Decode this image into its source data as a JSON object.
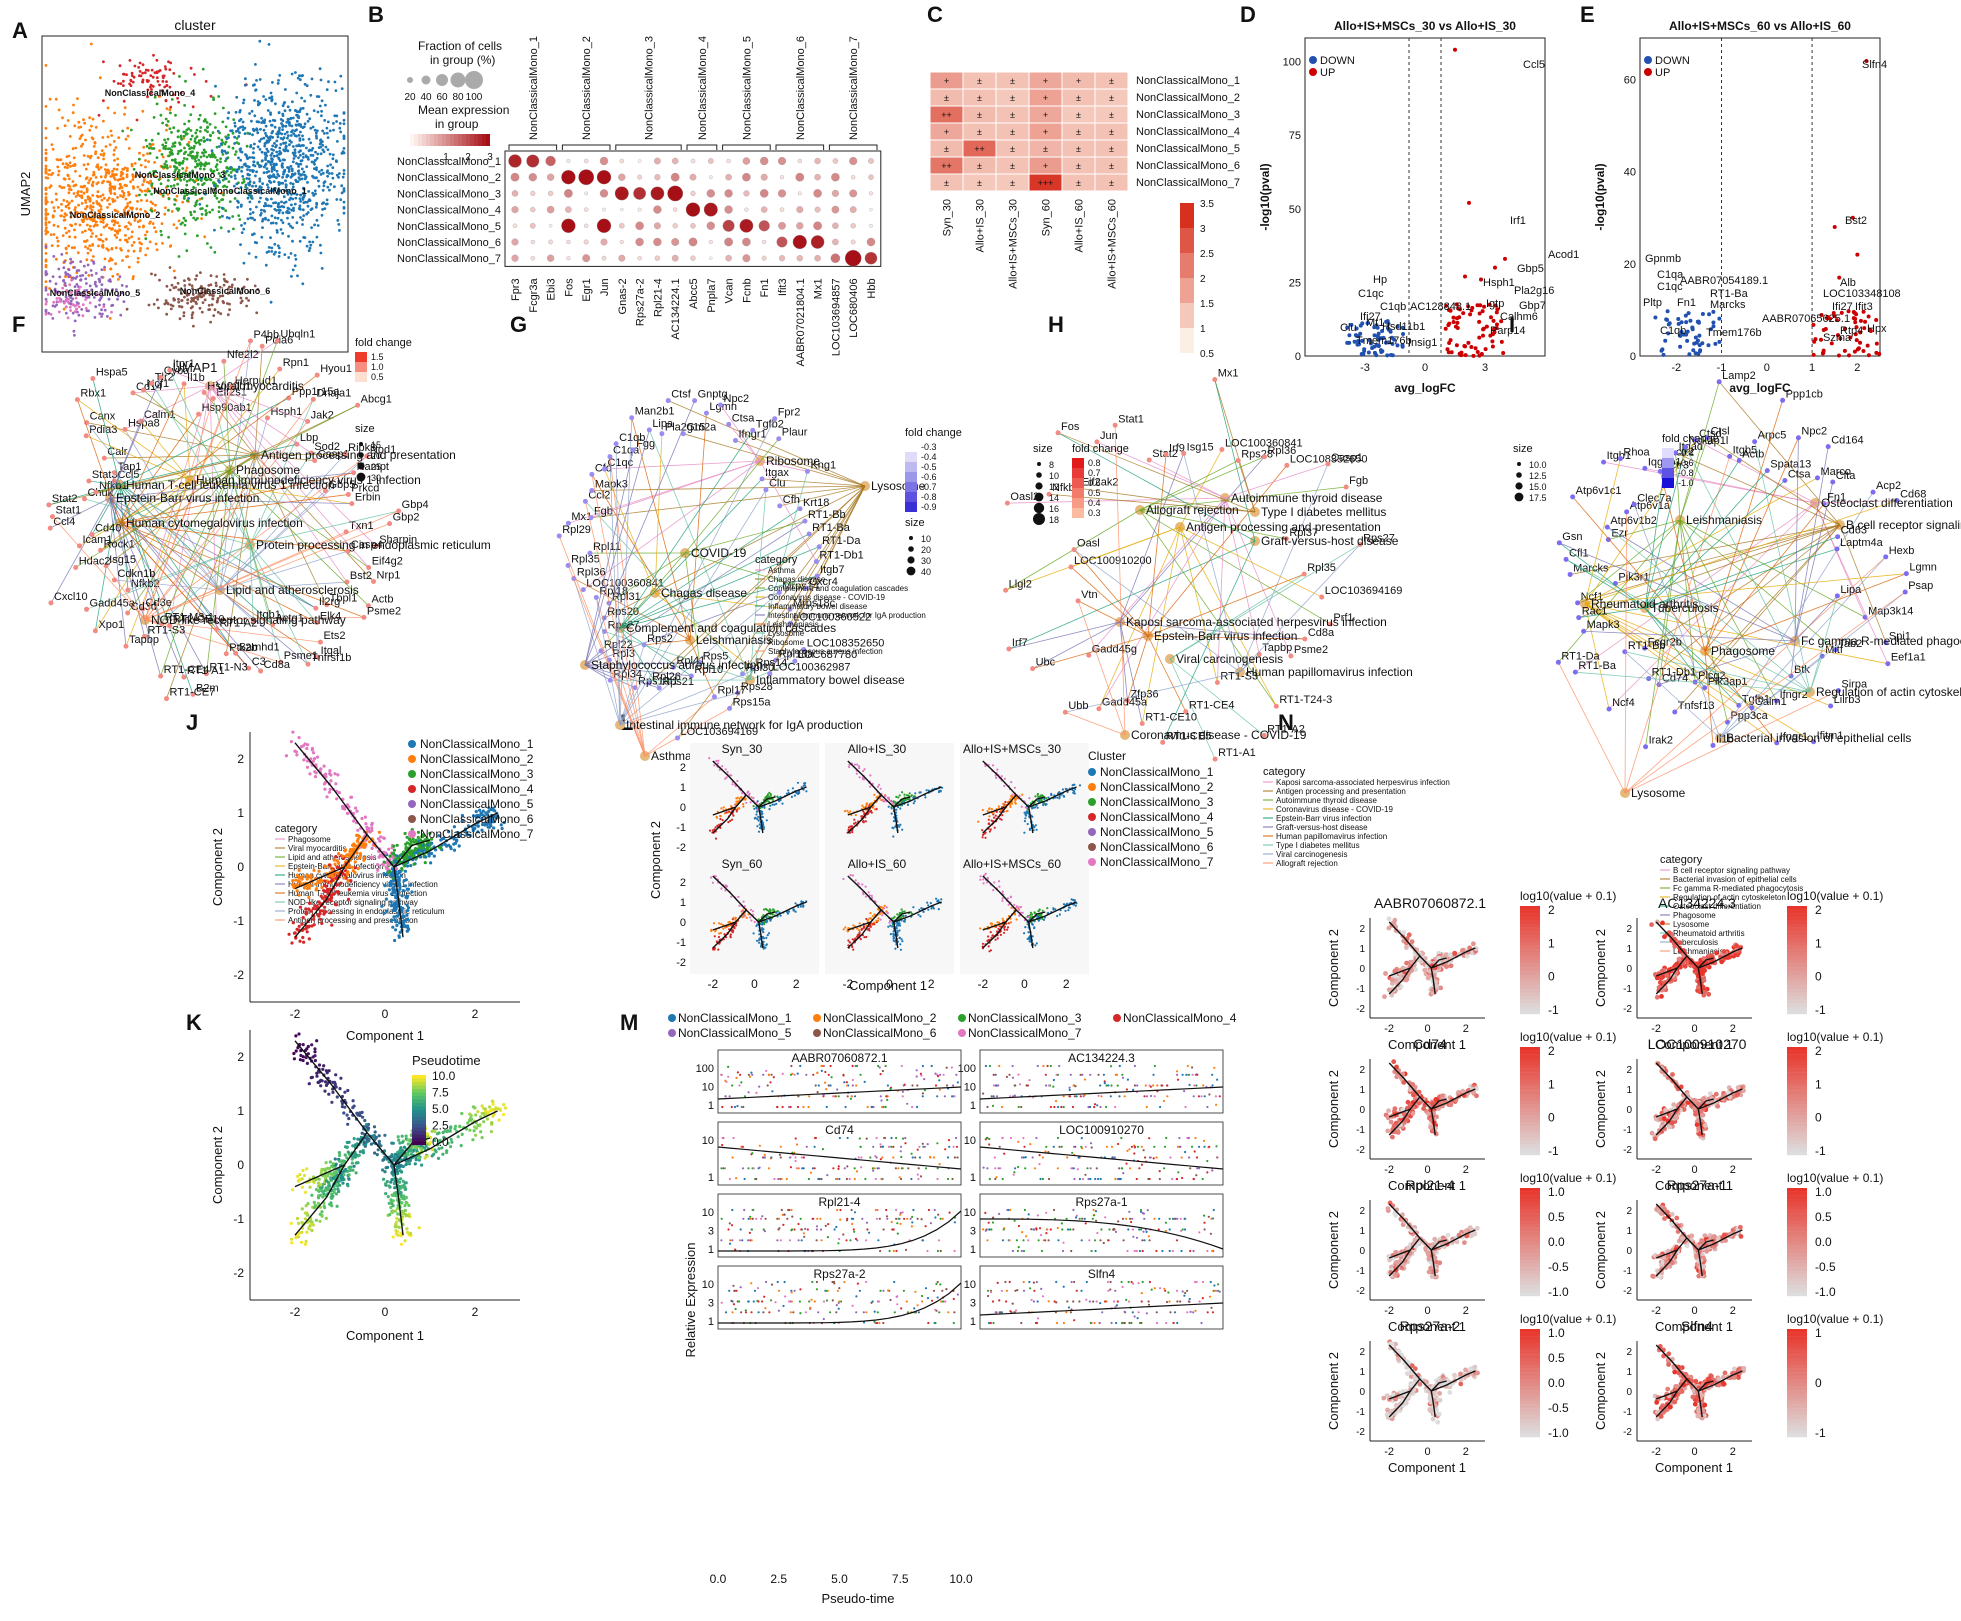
{
  "panel_letters": [
    "A",
    "B",
    "C",
    "D",
    "E",
    "F",
    "G",
    "H",
    "I",
    "J",
    "K",
    "L",
    "M",
    "N"
  ],
  "colors": {
    "clusters": [
      "#1f77b4",
      "#ff7f0e",
      "#2ca02c",
      "#d62728",
      "#9467bd",
      "#8c564b",
      "#e377c2"
    ],
    "up": "#cc0000",
    "down": "#2250b0",
    "heat_low": "#fbeee2",
    "heat_high": "#d7301f"
  },
  "clusters": [
    "NonClassicalMono_1",
    "NonClassicalMono_2",
    "NonClassicalMono_3",
    "NonClassicalMono_4",
    "NonClassicalMono_5",
    "NonClassicalMono_6",
    "NonClassicalMono_7"
  ],
  "panelA": {
    "title": "cluster",
    "xlabel": "UMAP1",
    "ylabel": "UMAP2",
    "labels": [
      "NonClassicalMono_4",
      "NonClassicalMono_3",
      "NonClassicalMonoClassicalMono_1",
      "NonClassicalMono_2",
      "NonClassicalMono_5",
      "NonClassicalMono_6"
    ]
  },
  "panelB": {
    "legend_size_title": "Fraction of cells in group (%)",
    "size_ticks": [
      "20",
      "40",
      "60",
      "80",
      "100"
    ],
    "legend_color_title": "Mean expression in group",
    "color_ticks": [
      "1",
      "2",
      "3"
    ],
    "genes": [
      "Fpr3",
      "Fcgr3a",
      "Ebi3",
      "Fos",
      "Egr1",
      "Jun",
      "Gnas-2",
      "Rps27a-2",
      "Rpl21-4",
      "AC134224.1",
      "Abcc5",
      "Pnpla7",
      "Vcan",
      "Fcnb",
      "Fn1",
      "Ifit3",
      "AABR07021804.1",
      "Mx1",
      "LOC103694857",
      "LOC680406",
      "Hbb"
    ]
  },
  "panelC": {
    "columns": [
      "Syn_30",
      "Allo+IS_30",
      "Allo+IS+MSCs_30",
      "Syn_60",
      "Allo+IS_60",
      "Allo+IS+MSCs_60"
    ],
    "scale_ticks": [
      "3.5",
      "3",
      "2.5",
      "2",
      "1.5",
      "1",
      "0.5"
    ],
    "signs": [
      [
        "+",
        "±",
        "±",
        "+",
        "+",
        "±"
      ],
      [
        "±",
        "±",
        "±",
        "+",
        "±",
        "±"
      ],
      [
        "++",
        "±",
        "±",
        "+",
        "±",
        "±"
      ],
      [
        "+",
        "±",
        "±",
        "+",
        "±",
        "±"
      ],
      [
        "±",
        "++",
        "±",
        "±",
        "±",
        "±"
      ],
      [
        "++",
        "±",
        "±",
        "+",
        "±",
        "±"
      ],
      [
        "±",
        "±",
        "±",
        "+++",
        "±",
        "±"
      ]
    ],
    "values": [
      [
        1.8,
        1.2,
        1.2,
        1.6,
        1.3,
        1.2
      ],
      [
        1.3,
        1.2,
        1.1,
        1.7,
        1.2,
        1.1
      ],
      [
        2.5,
        1.3,
        1.2,
        1.6,
        1.1,
        1.1
      ],
      [
        1.6,
        1.2,
        1.2,
        1.7,
        1.2,
        1.2
      ],
      [
        1.3,
        2.6,
        1.2,
        1.4,
        1.2,
        1.2
      ],
      [
        2.4,
        1.3,
        1.2,
        1.8,
        1.2,
        1.2
      ],
      [
        1.2,
        1.1,
        1.1,
        3.4,
        1.2,
        1.2
      ]
    ]
  },
  "panelD": {
    "title": "Allo+IS+MSCs_30 vs Allo+IS_30",
    "xlabel": "avg_logFC",
    "ylabel": "-log10(pval)",
    "legend": [
      "DOWN",
      "UP"
    ],
    "xticks": [
      "-3",
      "0",
      "3"
    ],
    "yticks": [
      "0",
      "25",
      "50",
      "75",
      "100"
    ],
    "labels": [
      "Ccl5",
      "Irf1",
      "Acod1",
      "Gbp5",
      "Hsph1",
      "Pla2g16",
      "Igtp",
      "Gbp7",
      "Calhm6",
      "Parp14",
      "AC128848.1",
      "Hp",
      "C1qc",
      "C1qb",
      "Ifi27",
      "Mt1",
      "Hsd11b1",
      "Clu",
      "Tmem176b",
      "Insig1"
    ]
  },
  "panelE": {
    "title": "Allo+IS+MSCs_60 vs Allo+IS_60",
    "xlabel": "avg_logFC",
    "ylabel": "-log10(pval)",
    "legend": [
      "DOWN",
      "UP"
    ],
    "xticks": [
      "-2",
      "-1",
      "0",
      "1",
      "2"
    ],
    "yticks": [
      "0",
      "20",
      "40",
      "60"
    ],
    "labels": [
      "Slfn4",
      "Bst2",
      "Alb",
      "LOC103348108",
      "Ifi27",
      "Ifit3",
      "Rtp4",
      "Hpx",
      "Szma",
      "AABR07065625.1",
      "Gpnmb",
      "C1qa",
      "AABR07054189.1",
      "C1qc",
      "RT1-Ba",
      "Pltp",
      "Fn1",
      "Marcks",
      "C1qb",
      "Tmem176b"
    ]
  },
  "panelF": {
    "legend_fc": "fold change",
    "fc_ticks": [
      "1.5",
      "1.0",
      "0.5"
    ],
    "legend_size": "size",
    "size_ticks": [
      "15",
      "20",
      "25",
      "30"
    ],
    "legend_cat": "category",
    "categories": [
      "Phagosome",
      "Viral myocarditis",
      "Lipid and atherosclerosis",
      "Epstein-Barr virus infection",
      "Human cytomegalovirus infection",
      "Human immunodeficiency virus 1 infection",
      "Human T-cell leukemia virus 1 infection",
      "NOD-like receptor signaling pathway",
      "Protein processing in endoplasmic reticulum",
      "Antigen processing and presentation"
    ],
    "terms": [
      "Viral myocarditis",
      "Antigen processing and presentation",
      "Phagosome",
      "Human immunodeficiency virus 1 infection",
      "Human T-cell leukemia virus 1 infection",
      "Epstein-Barr virus infection",
      "Human cytomegalovirus infection",
      "Protein processing in endoplasmic reticulum",
      "Lipid and atherosclerosis",
      "NOD-like receptor signaling pathway"
    ],
    "genes": [
      "Eif4g2",
      "Nrp1",
      "Bst2",
      "Actb",
      "Psme2",
      "Tbpl1",
      "Il2rg",
      "Elk4",
      "Ets2",
      "Itgal",
      "Tnfrsf1b",
      "Actg1",
      "Psme1",
      "Itgb1",
      "Cd8a",
      "C3",
      "Samhd1",
      "Ptk2b",
      "RT1-A2",
      "RT1-N3",
      "B2m",
      "RT1-A1",
      "RT1-CE7",
      "RT1-CE4",
      "RT1-CE10",
      "RT1-M3-1",
      "RT1-S3",
      "Tapbp",
      "Cd3e",
      "Cd3d",
      "Xpo1",
      "Nfkb2",
      "Gadd45a",
      "Cdkn1b",
      "Cxcl10",
      "Isg15",
      "Hdac2",
      "Rock1",
      "Icam1",
      "Cd40",
      "Ccl4",
      "Stat1",
      "Stat2",
      "Chuk",
      "Nfkb1",
      "Stat3",
      "Ccl5",
      "Tap1",
      "Calr",
      "Pdia3",
      "Canx",
      "Rbx1",
      "Hspa8",
      "Hspa5",
      "Calm1",
      "Cd14",
      "Ncf1",
      "Tlr2",
      "Cyba",
      "Itpr1",
      "Il1b",
      "Hsp90ab1",
      "Hsp90b1",
      "Eif2s1",
      "Nfe2l2",
      "Herpud1",
      "P4hb",
      "Pdia6",
      "Ubqln1",
      "Rpn1",
      "Hsph1",
      "Ppp1r15a",
      "Hyou1",
      "Dnaja1",
      "Jak2",
      "Lbp",
      "Abcg1",
      "Sod2",
      "Casp1",
      "Ripk3",
      "Nod1",
      "Nampt",
      "Gbp5",
      "Prkcd",
      "Erbin",
      "Gbp4",
      "Gbp2",
      "Txn1",
      "Sharpin",
      "Casp4"
    ]
  },
  "panelG": {
    "legend_fc": "fold change",
    "fc_ticks": [
      "-0.3",
      "-0.4",
      "-0.5",
      "-0.6",
      "-0.7",
      "-0.8",
      "-0.9"
    ],
    "legend_size": "size",
    "size_ticks": [
      "10",
      "20",
      "30",
      "40"
    ],
    "legend_cat": "category",
    "categories": [
      "Asthma",
      "Chagas disease",
      "Complement and coagulation cascades",
      "Coronavirus disease - COVID-19",
      "Inflammatory bowel disease",
      "Intestinal immune network for IgA production",
      "Leishmaniasis",
      "Lysosome",
      "Ribosome",
      "Staphylococcus aureus infection"
    ],
    "terms": [
      "Ribosome",
      "Lysosome",
      "COVID-19",
      "Chagas disease",
      "Complement and coagulation cascades",
      "Staphylococcus aureus infection",
      "Leishmaniasis",
      "Inflammatory bowel disease",
      "Intestinal immune network for IgA production",
      "Asthma"
    ],
    "genes": [
      "Mrps14",
      "Mrps18c",
      "LOC100360522",
      "LOC108352650",
      "LOC687780",
      "Rpl18a",
      "LOC100362987",
      "Rps14",
      "Rpl30",
      "Rps28",
      "Rps15a",
      "Rpl17",
      "Rps5",
      "Rpl10",
      "LOC103694169",
      "Rpl41",
      "Rps21",
      "Rpl26",
      "Rps18l1",
      "Rps2",
      "Rpl34",
      "Rpl3",
      "Rpl22",
      "Rps27",
      "Rps20",
      "Rpl31",
      "Rpl18",
      "LOC100360841",
      "Rpl36",
      "Rpl35",
      "Rpl11",
      "Rpl29",
      "Mx1",
      "Fgb",
      "Ccl2",
      "Mapk3",
      "Cfd",
      "C1qc",
      "C1qa",
      "C1qb",
      "Fgg",
      "Man2b1",
      "Lipa",
      "Pla2g15",
      "Ctsf",
      "Gm2a",
      "Gnptg",
      "Lgmn",
      "Npc2",
      "Ctsa",
      "Ifngr1",
      "Tgfb2",
      "Fpr2",
      "Plaur",
      "Itgax",
      "Clu",
      "Kng1",
      "Cfh",
      "Krt18",
      "RT1-Bb",
      "RT1-Ba",
      "RT1-Da",
      "RT1-Db1",
      "Itgb7",
      "Cxcr4"
    ]
  },
  "panelH": {
    "legend_size": "size",
    "size_ticks": [
      "8",
      "10",
      "12",
      "14",
      "16",
      "18"
    ],
    "legend_fc": "fold change",
    "fc_ticks": [
      "0.8",
      "0.7",
      "0.6",
      "0.5",
      "0.4",
      "0.3"
    ],
    "legend_cat": "category",
    "categories": [
      "Kaposi sarcoma-associated herpesvirus infection",
      "Antigen processing and presentation",
      "Autoimmune thyroid disease",
      "Coronavirus disease - COVID-19",
      "Epstein-Barr virus infection",
      "Graft-versus-host disease",
      "Human papillomavirus infection",
      "Type I diabetes mellitus",
      "Viral carcinogenesis",
      "Allograft rejection"
    ],
    "terms": [
      "Autoimmune thyroid disease",
      "Type I diabetes mellitus",
      "Allograft rejection",
      "Antigen processing and presentation",
      "Graft-versus-host disease",
      "Kaposi sarcoma-associated herpesvirus infection",
      "Epstein-Barr virus infection",
      "Viral carcinogenesis",
      "Human papillomavirus infection",
      "Coronavirus disease - COVID-19"
    ],
    "genes": [
      "Prf1",
      "Cd8a",
      "Psme2",
      "Tapbp",
      "RT1-T24-3",
      "RT1-A2",
      "RT1-S3",
      "RT1-A1",
      "RT1-CE4",
      "RT1-CE5",
      "RT1-CE10",
      "Zfp36",
      "Gadd45a",
      "Ubb",
      "Gadd45g",
      "Ubc",
      "Irf7",
      "Vtn",
      "Llgl2",
      "LOC100910200",
      "Oasl",
      "Oasl2",
      "Nfkbia",
      "Eif2ak2",
      "Fos",
      "Jun",
      "Stat1",
      "Stat2",
      "Irf9",
      "Isg15",
      "Mx1",
      "LOC100360841",
      "Rps28",
      "Rpl36",
      "LOC108352650",
      "Casp1",
      "Fgb",
      "Rpl37",
      "Rps27",
      "Rpl35",
      "LOC103694169"
    ]
  },
  "panelI": {
    "legend_fc": "fold change",
    "fc_ticks": [
      "-0.4",
      "-0.6",
      "-0.8",
      "-1.0"
    ],
    "legend_size": "size",
    "size_ticks": [
      "10.0",
      "12.5",
      "15.0",
      "17.5"
    ],
    "legend_cat": "category",
    "categories": [
      "B cell receptor signaling pathway",
      "Bacterial invasion of epithelial cells",
      "Fc gamma R-mediated phagocytosis",
      "Regulation of actin cytoskeleton",
      "Osteoclast differentiation",
      "Phagosome",
      "Lysosome",
      "Rheumatoid arthritis",
      "Tuberculosis",
      "Leishmaniasis"
    ],
    "terms": [
      "Osteoclast differentiation",
      "B cell receptor signaling pathway",
      "Leishmaniasis",
      "Rheumatoid arthritis",
      "Tuberculosis",
      "Fc gamma R-mediated phagocytosis",
      "Phagosome",
      "Regulation of actin cytoskeleton",
      "Bacterial invasion of epithelial cells",
      "Lysosome"
    ],
    "genes": [
      "Map3k14",
      "Spi1",
      "Eef1a1",
      "Tab2",
      "Mitf",
      "Sirpa",
      "Lilrb3",
      "Btk",
      "Ifitm1",
      "Ifngr2",
      "Ifngr1",
      "Calm1",
      "Tgfb1",
      "Ppp3ca",
      "Il1b",
      "Pik3ap1",
      "Plcg2",
      "Tnfsf13",
      "Irak2",
      "Cd74",
      "RT1-Db1",
      "Ncf4",
      "Fcgr2b",
      "RT1-Bb",
      "RT1-Ba",
      "RT1-Da",
      "Mapk3",
      "Rac1",
      "Ncf1",
      "Pik3r1",
      "Marcks",
      "Cfl1",
      "Gsn",
      "Ezr",
      "Atp6v1b2",
      "Atp6v1c1",
      "Atp6v1a",
      "Clec7a",
      "Itgb1",
      "Rhoa",
      "Iqgap1",
      "Actr3",
      "Actr2",
      "Itgad",
      "Nckap1l",
      "Ctsd",
      "Ctsl",
      "Lamp2",
      "Itgb5",
      "Actb",
      "Arpc5",
      "Ppp1cb",
      "Spata13",
      "Npc2",
      "Ctsa",
      "Cd164",
      "Marco",
      "Clta",
      "Fn1",
      "Acp2",
      "Cd68",
      "Cd63",
      "Laptm4a",
      "Hexb",
      "Lgmn",
      "Psap",
      "Lipa"
    ]
  },
  "panelJ": {
    "xlabel": "Component 1",
    "ylabel": "Component 2",
    "xticks": [
      "-2",
      "0",
      "2"
    ],
    "yticks": [
      "-2",
      "-1",
      "0",
      "1",
      "2"
    ]
  },
  "panelK": {
    "xlabel": "Component 1",
    "ylabel": "Component 2",
    "legend": "Pseudotime",
    "legend_ticks": [
      "10.0",
      "7.5",
      "5.0",
      "2.5",
      "0.0"
    ],
    "xticks": [
      "-2",
      "0",
      "2"
    ],
    "yticks": [
      "-2",
      "-1",
      "0",
      "1",
      "2"
    ]
  },
  "panelL": {
    "facets": [
      "Syn_30",
      "Allo+IS_30",
      "Allo+IS+MSCs_30",
      "Syn_60",
      "Allo+IS_60",
      "Allo+IS+MSCs_60"
    ],
    "legend": "Cluster",
    "xlabel": "Component 1",
    "ylabel": "Component 2",
    "xticks": [
      "-2",
      "0",
      "2"
    ],
    "yticks": [
      "-2",
      "-1",
      "0",
      "1",
      "2"
    ]
  },
  "panelM": {
    "genes": [
      "AABR07060872.1",
      "AC134224.3",
      "Cd74",
      "LOC100910270",
      "Rpl21-4",
      "Rps27a-1",
      "Rps27a-2",
      "Slfn4"
    ],
    "yticks": [
      [
        "100",
        "10",
        "1"
      ],
      [
        "100",
        "10",
        "1"
      ],
      [
        "10",
        "1"
      ],
      [
        "10",
        "1"
      ],
      [
        "10",
        "3",
        "1"
      ],
      [
        "10",
        "3",
        "1"
      ],
      [
        "10",
        "3",
        "1"
      ],
      [
        "10",
        "3",
        "1"
      ]
    ],
    "xlabel": "Pseudo-time",
    "ylabel": "Relative Expression",
    "xticks": [
      "0.0",
      "2.5",
      "5.0",
      "7.5",
      "10.0"
    ]
  },
  "panelN": {
    "genes": [
      "AABR07060872.1",
      "AC134224.3",
      "Cd74",
      "LOC100910270",
      "Rpl21-4",
      "Rps27a-1",
      "Rps27a-2",
      "Slfn4"
    ],
    "scale_title": "log10(value + 0.1)",
    "scale_ticks": [
      [
        "2",
        "1",
        "0",
        "-1"
      ],
      [
        "2",
        "1",
        "0",
        "-1"
      ],
      [
        "2",
        "1",
        "0",
        "-1"
      ],
      [
        "2",
        "1",
        "0",
        "-1"
      ],
      [
        "1.0",
        "0.5",
        "0.0",
        "-0.5",
        "-1.0"
      ],
      [
        "1.0",
        "0.5",
        "0.0",
        "-0.5",
        "-1.0"
      ],
      [
        "1.0",
        "0.5",
        "0.0",
        "-0.5",
        "-1.0"
      ],
      [
        "1",
        "0",
        "-1"
      ]
    ],
    "xlabel": "Component 1",
    "ylabel": "Component 2",
    "xticks": [
      "-2",
      "0",
      "2"
    ],
    "yticks": [
      "-2",
      "-1",
      "0",
      "1",
      "2"
    ]
  }
}
